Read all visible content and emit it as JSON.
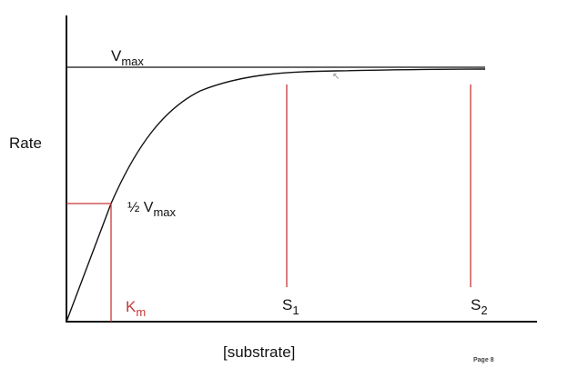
{
  "y_label": "Rate",
  "x_label": "[substrate]",
  "vmax": {
    "main": "V",
    "sub": "max"
  },
  "half_vmax": {
    "main": "½ V",
    "sub": "max"
  },
  "km": {
    "main": "K",
    "sub": "m"
  },
  "s1": {
    "main": "S",
    "sub": "1"
  },
  "s2": {
    "main": "S",
    "sub": "2"
  },
  "page": "Page 8",
  "colors": {
    "axis": "#111111",
    "curve": "#111111",
    "guide": "#c8383a",
    "km_text": "#c8383a"
  },
  "cursor_icon": "mouse-pointer-icon"
}
